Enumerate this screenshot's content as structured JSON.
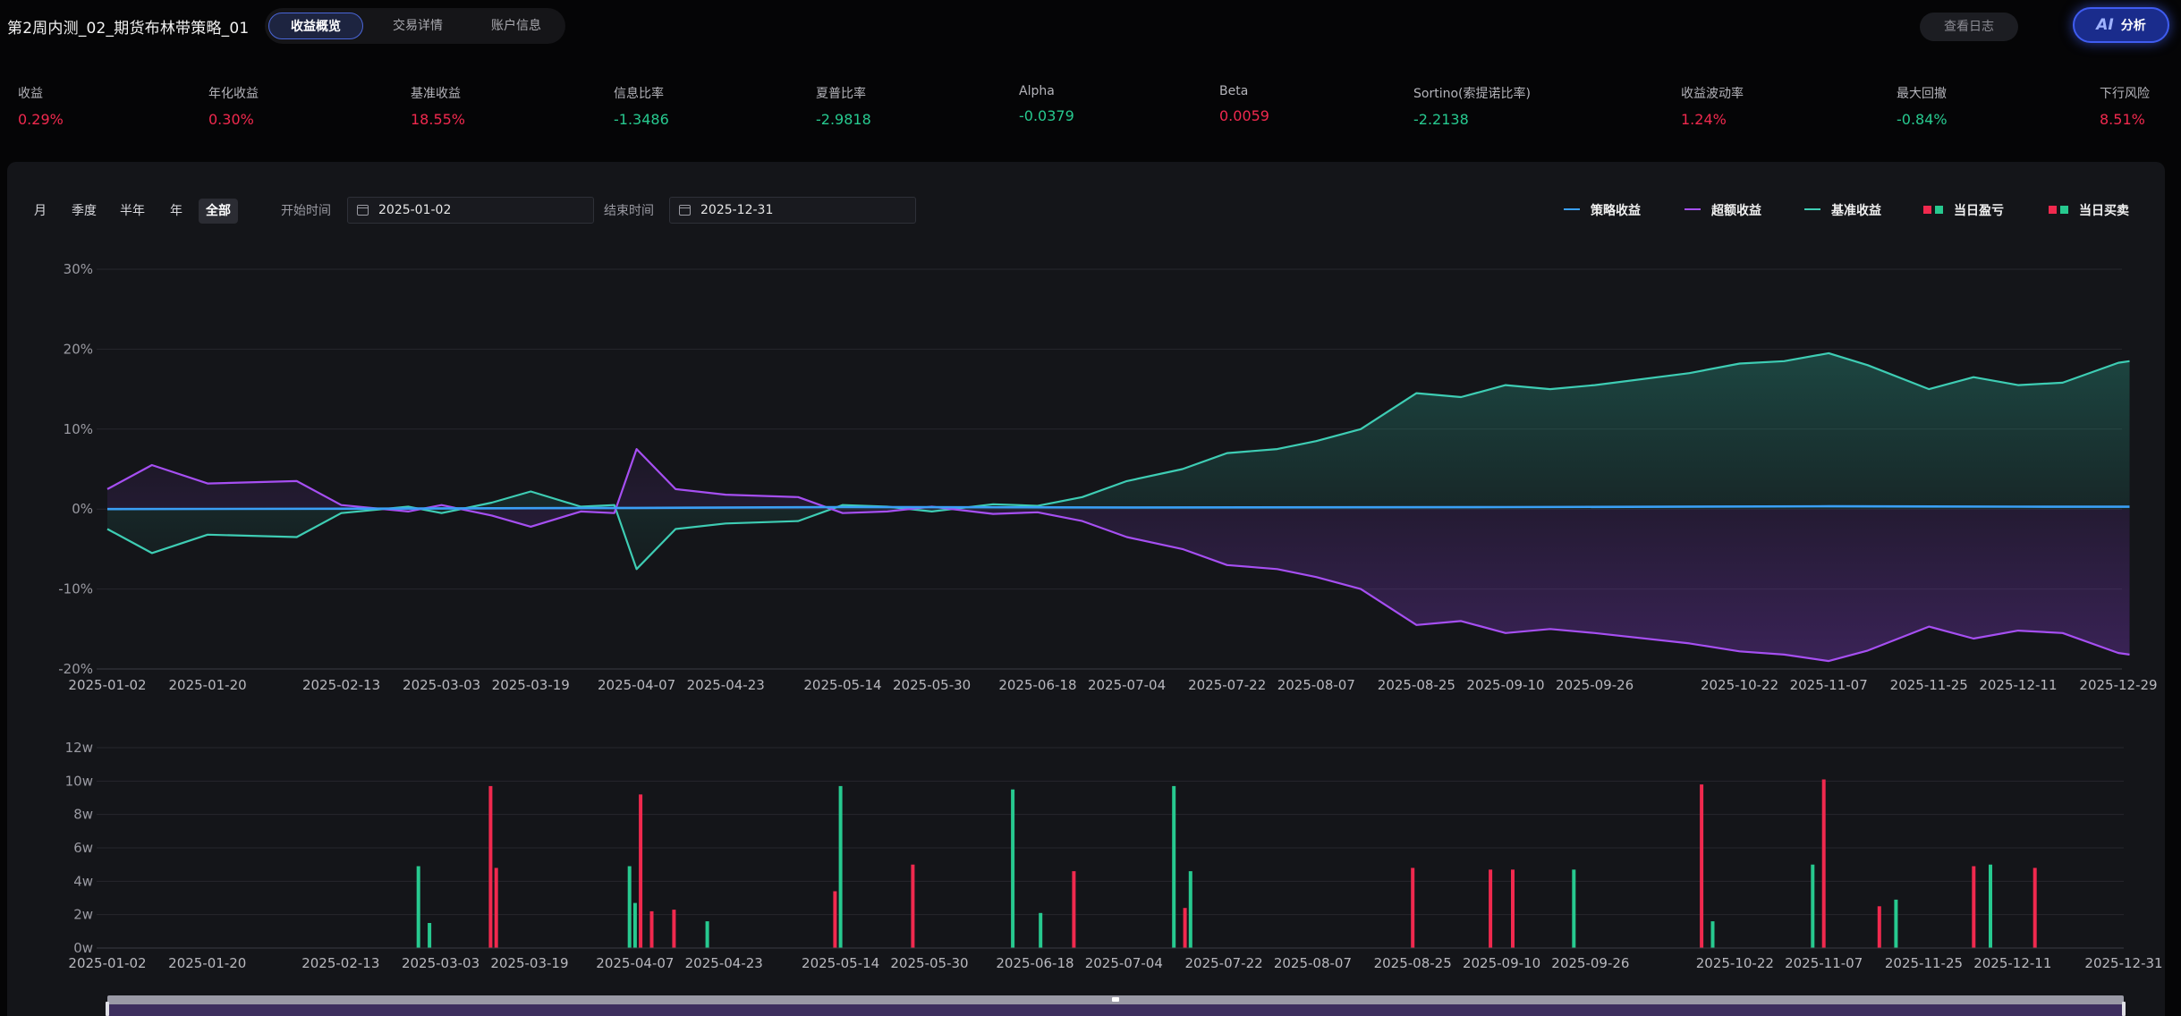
{
  "header": {
    "title": "第2周内测_02_期货布林带策略_01",
    "tabs": [
      {
        "label": "收益概览",
        "active": true
      },
      {
        "label": "交易详情",
        "active": false
      },
      {
        "label": "账户信息",
        "active": false
      }
    ],
    "log_button": "查看日志",
    "ai_button": {
      "glyph": "AI",
      "label": "分析"
    }
  },
  "metrics": [
    {
      "label": "收益",
      "value": "0.29%",
      "tone": "red"
    },
    {
      "label": "年化收益",
      "value": "0.30%",
      "tone": "red"
    },
    {
      "label": "基准收益",
      "value": "18.55%",
      "tone": "red"
    },
    {
      "label": "信息比率",
      "value": "-1.3486",
      "tone": "green"
    },
    {
      "label": "夏普比率",
      "value": "-2.9818",
      "tone": "green"
    },
    {
      "label": "Alpha",
      "value": "-0.0379",
      "tone": "green"
    },
    {
      "label": "Beta",
      "value": "0.0059",
      "tone": "red"
    },
    {
      "label": "Sortino(索提诺比率)",
      "value": "-2.2138",
      "tone": "green"
    },
    {
      "label": "收益波动率",
      "value": "1.24%",
      "tone": "red"
    },
    {
      "label": "最大回撤",
      "value": "-0.84%",
      "tone": "green"
    },
    {
      "label": "下行风险",
      "value": "8.51%",
      "tone": "red"
    }
  ],
  "filters": {
    "periods": [
      {
        "label": "月",
        "active": false
      },
      {
        "label": "季度",
        "active": false
      },
      {
        "label": "半年",
        "active": false
      },
      {
        "label": "年",
        "active": false
      },
      {
        "label": "全部",
        "active": true
      }
    ],
    "start_label": "开始时间",
    "start_date": "2025-01-02",
    "end_label": "结束时间",
    "end_date": "2025-12-31"
  },
  "legend": [
    {
      "label": "策略收益",
      "kind": "line",
      "colors": [
        "#3a9ff5"
      ]
    },
    {
      "label": "超额收益",
      "kind": "line",
      "colors": [
        "#a64ff2"
      ]
    },
    {
      "label": "基准收益",
      "kind": "line",
      "colors": [
        "#3ecdb4"
      ]
    },
    {
      "label": "当日盈亏",
      "kind": "squares",
      "colors": [
        "#f0294e",
        "#27c98f"
      ]
    },
    {
      "label": "当日买卖",
      "kind": "squares",
      "colors": [
        "#f0294e",
        "#27c98f"
      ]
    }
  ],
  "colors": {
    "strategy": "#3a9ff5",
    "excess": "#a64ff2",
    "benchmark": "#3ecdb4",
    "up": "#f0294e",
    "down": "#27c98f"
  },
  "chart_data": [
    {
      "type": "line",
      "x_tick_labels": [
        "2025-01-02",
        "2025-01-20",
        "2025-02-13",
        "2025-03-03",
        "2025-03-19",
        "2025-04-07",
        "2025-04-23",
        "2025-05-14",
        "2025-05-30",
        "2025-06-18",
        "2025-07-04",
        "2025-07-22",
        "2025-08-07",
        "2025-08-25",
        "2025-09-10",
        "2025-09-26",
        "2025-10-22",
        "2025-11-07",
        "2025-11-25",
        "2025-12-11",
        "2025-12-29"
      ],
      "y_tick_labels": [
        "30%",
        "20%",
        "10%",
        "0%",
        "-10%",
        "-20%"
      ],
      "ylim": [
        -20,
        30
      ],
      "y_unit": "%",
      "grid": true,
      "series": [
        {
          "name": "基准收益",
          "x": [
            "2025-01-02",
            "2025-01-10",
            "2025-01-20",
            "2025-02-05",
            "2025-02-13",
            "2025-02-25",
            "2025-03-03",
            "2025-03-12",
            "2025-03-19",
            "2025-03-28",
            "2025-04-03",
            "2025-04-07",
            "2025-04-14",
            "2025-04-23",
            "2025-05-06",
            "2025-05-14",
            "2025-05-22",
            "2025-05-30",
            "2025-06-10",
            "2025-06-18",
            "2025-06-26",
            "2025-07-04",
            "2025-07-14",
            "2025-07-22",
            "2025-07-31",
            "2025-08-07",
            "2025-08-15",
            "2025-08-25",
            "2025-09-02",
            "2025-09-10",
            "2025-09-18",
            "2025-09-26",
            "2025-10-13",
            "2025-10-22",
            "2025-10-30",
            "2025-11-07",
            "2025-11-14",
            "2025-11-25",
            "2025-12-03",
            "2025-12-11",
            "2025-12-19",
            "2025-12-29",
            "2025-12-31"
          ],
          "values": [
            -2.5,
            -5.5,
            -3.2,
            -3.5,
            -0.5,
            0.3,
            -0.5,
            0.8,
            2.2,
            0.3,
            0.5,
            -7.5,
            -2.5,
            -1.8,
            -1.5,
            0.5,
            0.3,
            -0.3,
            0.6,
            0.4,
            1.5,
            3.5,
            5.0,
            7.0,
            7.5,
            8.5,
            10.0,
            14.5,
            14.0,
            15.5,
            15.0,
            15.5,
            17.0,
            18.2,
            18.5,
            19.5,
            18.0,
            15.0,
            16.5,
            15.5,
            15.8,
            18.3,
            18.5
          ]
        },
        {
          "name": "超额收益",
          "x": [
            "2025-01-02",
            "2025-01-10",
            "2025-01-20",
            "2025-02-05",
            "2025-02-13",
            "2025-02-25",
            "2025-03-03",
            "2025-03-12",
            "2025-03-19",
            "2025-03-28",
            "2025-04-03",
            "2025-04-07",
            "2025-04-14",
            "2025-04-23",
            "2025-05-06",
            "2025-05-14",
            "2025-05-22",
            "2025-05-30",
            "2025-06-10",
            "2025-06-18",
            "2025-06-26",
            "2025-07-04",
            "2025-07-14",
            "2025-07-22",
            "2025-07-31",
            "2025-08-07",
            "2025-08-15",
            "2025-08-25",
            "2025-09-02",
            "2025-09-10",
            "2025-09-18",
            "2025-09-26",
            "2025-10-13",
            "2025-10-22",
            "2025-10-30",
            "2025-11-07",
            "2025-11-14",
            "2025-11-25",
            "2025-12-03",
            "2025-12-11",
            "2025-12-19",
            "2025-12-29",
            "2025-12-31"
          ],
          "values": [
            2.5,
            5.5,
            3.2,
            3.5,
            0.5,
            -0.3,
            0.5,
            -0.8,
            -2.2,
            -0.3,
            -0.5,
            7.5,
            2.5,
            1.8,
            1.5,
            -0.5,
            -0.3,
            0.3,
            -0.6,
            -0.4,
            -1.5,
            -3.5,
            -5.0,
            -7.0,
            -7.5,
            -8.5,
            -10.0,
            -14.5,
            -14.0,
            -15.5,
            -15.0,
            -15.5,
            -16.8,
            -17.8,
            -18.2,
            -19.0,
            -17.7,
            -14.7,
            -16.2,
            -15.2,
            -15.5,
            -18.0,
            -18.2
          ]
        },
        {
          "name": "策略收益",
          "x": [
            "2025-01-02",
            "2025-02-13",
            "2025-04-07",
            "2025-05-14",
            "2025-07-04",
            "2025-09-10",
            "2025-11-07",
            "2025-12-11",
            "2025-12-31"
          ],
          "values": [
            0.0,
            0.05,
            0.15,
            0.25,
            0.2,
            0.25,
            0.35,
            0.3,
            0.29
          ]
        }
      ]
    },
    {
      "type": "bar",
      "x_tick_labels": [
        "2025-01-02",
        "2025-01-20",
        "2025-02-13",
        "2025-03-03",
        "2025-03-19",
        "2025-04-07",
        "2025-04-23",
        "2025-05-14",
        "2025-05-30",
        "2025-06-18",
        "2025-07-04",
        "2025-07-22",
        "2025-08-07",
        "2025-08-25",
        "2025-09-10",
        "2025-09-26",
        "2025-10-22",
        "2025-11-07",
        "2025-11-25",
        "2025-12-11",
        "2025-12-31"
      ],
      "y_tick_labels": [
        "12w",
        "10w",
        "8w",
        "6w",
        "4w",
        "2w",
        "0w"
      ],
      "ylim": [
        0,
        12
      ],
      "y_unit": "w",
      "series": [
        {
          "name": "红",
          "color": "#f0294e",
          "x": [
            "2025-03-12",
            "2025-03-13",
            "2025-04-08",
            "2025-04-10",
            "2025-04-14",
            "2025-05-13",
            "2025-05-27",
            "2025-06-25",
            "2025-07-15",
            "2025-08-25",
            "2025-09-08",
            "2025-09-12",
            "2025-10-16",
            "2025-11-07",
            "2025-11-17",
            "2025-12-04",
            "2025-12-15"
          ],
          "values": [
            9.7,
            4.8,
            9.2,
            2.2,
            2.3,
            3.4,
            5.0,
            4.6,
            2.4,
            4.8,
            4.7,
            4.7,
            9.8,
            10.1,
            2.5,
            4.9,
            4.8
          ]
        },
        {
          "name": "绿",
          "color": "#27c98f",
          "x": [
            "2025-02-27",
            "2025-03-01",
            "2025-04-06",
            "2025-04-07",
            "2025-04-20",
            "2025-05-14",
            "2025-06-14",
            "2025-06-19",
            "2025-07-13",
            "2025-07-16",
            "2025-09-23",
            "2025-10-18",
            "2025-11-05",
            "2025-11-20",
            "2025-12-07"
          ],
          "values": [
            4.9,
            1.5,
            4.9,
            2.7,
            1.6,
            9.7,
            9.5,
            2.1,
            9.7,
            4.6,
            4.7,
            1.6,
            5.0,
            2.9,
            5.0
          ]
        }
      ]
    }
  ]
}
